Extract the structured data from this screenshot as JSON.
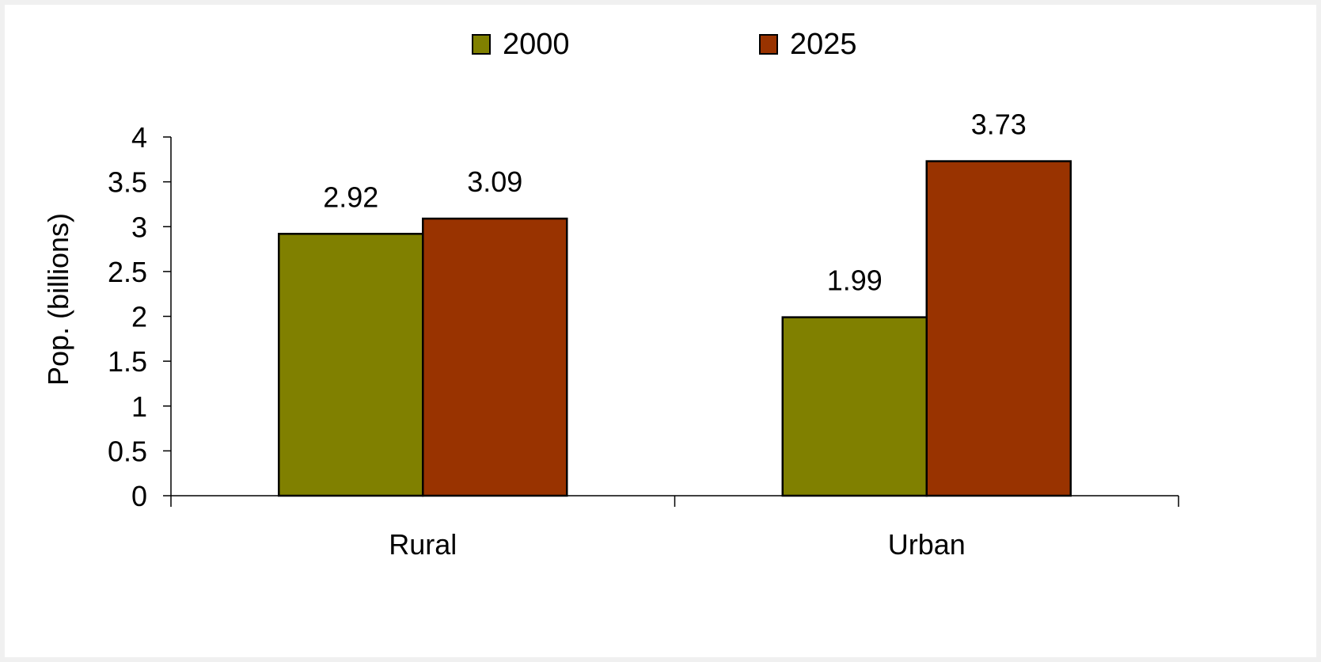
{
  "chart_data": {
    "type": "bar",
    "categories": [
      "Rural",
      "Urban"
    ],
    "series": [
      {
        "name": "2000",
        "values": [
          2.92,
          1.99
        ],
        "color": "#808000"
      },
      {
        "name": "2025",
        "values": [
          3.09,
          3.73
        ],
        "color": "#993300"
      }
    ],
    "data_labels": [
      [
        "2.92",
        "1.99"
      ],
      [
        "3.09",
        "3.73"
      ]
    ],
    "ylabel": "Pop. (billions)",
    "ylim": [
      0,
      4
    ],
    "yticks": [
      "0",
      "0.5",
      "1",
      "1.5",
      "2",
      "2.5",
      "3",
      "3.5",
      "4"
    ],
    "grid": false,
    "legend_position": "top"
  }
}
